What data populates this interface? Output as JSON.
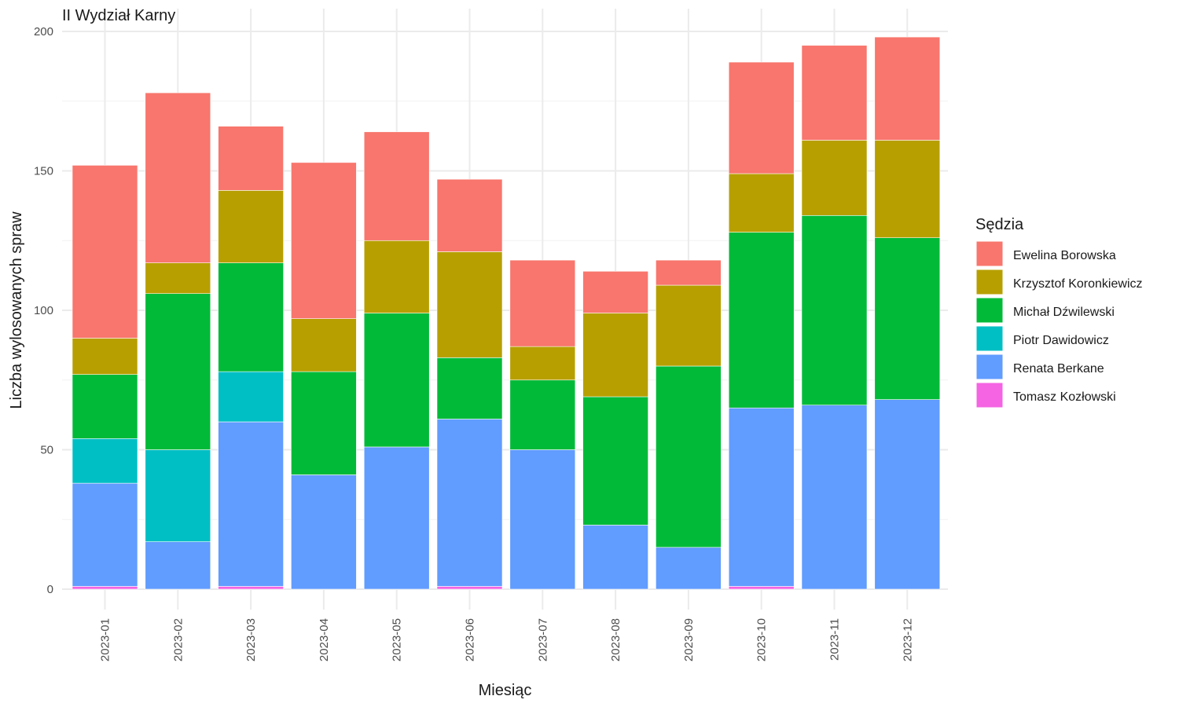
{
  "chart_data": {
    "type": "bar",
    "stacked": true,
    "title": "II Wydział Karny",
    "xlabel": "Miesiąc",
    "ylabel": "Liczba wylosowanych spraw",
    "ylim": [
      0,
      200
    ],
    "yticks": [
      0,
      50,
      100,
      150,
      200
    ],
    "grid": true,
    "legend_position": "right",
    "legend_title": "Sędzia",
    "categories": [
      "2023-01",
      "2023-02",
      "2023-03",
      "2023-04",
      "2023-05",
      "2023-06",
      "2023-07",
      "2023-08",
      "2023-09",
      "2023-10",
      "2023-11",
      "2023-12"
    ],
    "series": [
      {
        "name": "Ewelina Borowska",
        "color": "#F8766D",
        "values": [
          62,
          61,
          23,
          56,
          39,
          26,
          31,
          15,
          9,
          40,
          34,
          37
        ]
      },
      {
        "name": "Krzysztof Koronkiewicz",
        "color": "#B79F00",
        "values": [
          13,
          11,
          26,
          19,
          26,
          38,
          12,
          30,
          29,
          21,
          27,
          35
        ]
      },
      {
        "name": "Michał Dźwilewski",
        "color": "#00BA38",
        "values": [
          23,
          56,
          39,
          37,
          48,
          22,
          25,
          46,
          65,
          63,
          68,
          58
        ]
      },
      {
        "name": "Piotr Dawidowicz",
        "color": "#00BFC4",
        "values": [
          16,
          33,
          18,
          0,
          0,
          0,
          0,
          0,
          0,
          0,
          0,
          0
        ]
      },
      {
        "name": "Renata Berkane",
        "color": "#619CFF",
        "values": [
          37,
          17,
          59,
          41,
          51,
          60,
          50,
          23,
          15,
          64,
          66,
          68
        ]
      },
      {
        "name": "Tomasz Kozłowski",
        "color": "#F564E3",
        "values": [
          1,
          0,
          1,
          0,
          0,
          1,
          0,
          0,
          0,
          1,
          0,
          0
        ]
      }
    ]
  }
}
